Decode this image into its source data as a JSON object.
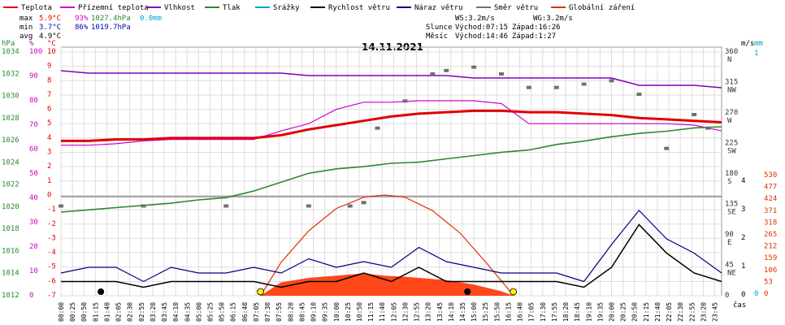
{
  "header": {
    "legend": [
      {
        "label": "Teplota",
        "color": "#e00000"
      },
      {
        "label": "Přízemní teplota",
        "color": "#d000d0"
      },
      {
        "label": "Vlhkost",
        "color": "#8000c0"
      },
      {
        "label": "Tlak",
        "color": "#2a8a2a"
      },
      {
        "label": "Srážky",
        "color": "#00a0d0"
      },
      {
        "label": "Rychlost větru",
        "color": "#000000"
      },
      {
        "label": "Náraz větru",
        "color": "#000080"
      },
      {
        "label": "Směr větru",
        "color": "#707070"
      },
      {
        "label": "Globální záření",
        "color": "#e03000"
      }
    ],
    "stats": {
      "max": {
        "label": "max",
        "temp": "5.9°C",
        "hum": "93%",
        "press": "1027.4hPa",
        "rain": "0.0mm"
      },
      "min": {
        "label": "min",
        "temp": "3.7°C",
        "hum": "86%",
        "press": "1019.7hPa"
      },
      "avg": {
        "label": "avg",
        "temp": "4.9°C"
      }
    },
    "wind": {
      "ws": "WS:3.2m/s",
      "wg": "WG:3.2m/s"
    },
    "sun": {
      "label": "Slunce",
      "rise": "Východ:07:15",
      "set": "Západ:16:26"
    },
    "moon": {
      "label": "Měsíc",
      "rise": "Východ:14:46",
      "set": "Západ:1:27"
    }
  },
  "chart_data": {
    "type": "line",
    "title": "14.11.2021",
    "x_unit": "čas",
    "x_ticks": [
      "00:00",
      "00:25",
      "00:50",
      "01:15",
      "01:40",
      "02:05",
      "02:30",
      "02:55",
      "03:20",
      "03:45",
      "04:10",
      "04:35",
      "05:00",
      "05:25",
      "05:50",
      "06:15",
      "06:40",
      "07:05",
      "07:30",
      "07:55",
      "08:20",
      "08:45",
      "09:10",
      "09:35",
      "10:00",
      "10:25",
      "10:50",
      "11:15",
      "11:40",
      "12:05",
      "12:30",
      "12:55",
      "13:20",
      "13:45",
      "14:10",
      "14:35",
      "15:00",
      "15:25",
      "15:50",
      "16:15",
      "16:40",
      "17:05",
      "17:30",
      "17:55",
      "18:20",
      "18:45",
      "19:10",
      "19:35",
      "20:00",
      "20:25",
      "20:50",
      "21:15",
      "21:40",
      "22:05",
      "22:30",
      "22:55",
      "23:20",
      "23:45"
    ],
    "axes": {
      "pressure": {
        "unit": "hPa",
        "ticks": [
          "1034",
          "1032",
          "1030",
          "1028",
          "1026",
          "1024",
          "1022",
          "1020",
          "1018",
          "1016",
          "1014",
          "1012"
        ],
        "color": "#2a8a2a"
      },
      "humidity": {
        "unit": "%",
        "ticks": [
          "100",
          "90",
          "80",
          "70",
          "60",
          "50",
          "40",
          "30",
          "20",
          "10",
          "0"
        ],
        "color": "#d000d0"
      },
      "temperature": {
        "unit": "°C",
        "ticks": [
          "10",
          "9",
          "8",
          "7",
          "6",
          "5",
          "4",
          "3",
          "2",
          "1",
          "0",
          "-1",
          "-2",
          "-3",
          "-4",
          "-5",
          "-6",
          "-7"
        ],
        "color": "#e00000"
      },
      "direction": {
        "ticks": [
          {
            "v": "360",
            "d": "N"
          },
          {
            "v": "315",
            "d": "NW"
          },
          {
            "v": "270",
            "d": "W"
          },
          {
            "v": "225",
            "d": "SW"
          },
          {
            "v": "180",
            "d": "S"
          },
          {
            "v": "135",
            "d": "SE"
          },
          {
            "v": "90",
            "d": "E"
          },
          {
            "v": "45",
            "d": "NE"
          },
          {
            "v": "0",
            "d": ""
          }
        ]
      },
      "wind": {
        "unit": "m/s",
        "ticks": [
          "4",
          "3",
          "2",
          "1",
          "0"
        ]
      },
      "rain": {
        "unit": "mm",
        "ticks": [
          "1",
          "0"
        ],
        "color": "#00a0d0"
      },
      "radiation": {
        "ticks": [
          "530",
          "477",
          "424",
          "371",
          "318",
          "265",
          "212",
          "159",
          "106",
          "53",
          "0"
        ],
        "color": "#e03000"
      }
    },
    "series": [
      {
        "name": "Teplota",
        "unit": "°C",
        "x": [
          0,
          1,
          2,
          3,
          4,
          5,
          6,
          7,
          8,
          9,
          10,
          11,
          12,
          13,
          14,
          15,
          16,
          17,
          18,
          19,
          20,
          21,
          22,
          23,
          24
        ],
        "values": [
          3.8,
          3.8,
          3.9,
          3.9,
          4.0,
          4.0,
          4.0,
          4.0,
          4.2,
          4.6,
          4.9,
          5.2,
          5.5,
          5.7,
          5.8,
          5.9,
          5.9,
          5.8,
          5.8,
          5.7,
          5.6,
          5.4,
          5.3,
          5.2,
          5.1
        ]
      },
      {
        "name": "Přízemní teplota",
        "unit": "°C",
        "x": [
          0,
          1,
          2,
          3,
          4,
          5,
          6,
          7,
          8,
          9,
          10,
          11,
          12,
          13,
          14,
          15,
          16,
          17,
          18,
          19,
          20,
          21,
          22,
          23,
          24
        ],
        "values": [
          3.5,
          3.5,
          3.6,
          3.8,
          3.9,
          3.9,
          3.9,
          3.9,
          4.5,
          5.0,
          6.0,
          6.5,
          6.5,
          6.6,
          6.6,
          6.6,
          6.4,
          5.0,
          5.0,
          5.0,
          5.0,
          5.0,
          5.0,
          4.9,
          4.5
        ]
      },
      {
        "name": "Vlhkost",
        "unit": "%",
        "x": [
          0,
          1,
          2,
          3,
          4,
          5,
          6,
          7,
          8,
          9,
          10,
          11,
          12,
          13,
          14,
          15,
          16,
          17,
          18,
          19,
          20,
          21,
          22,
          23,
          24
        ],
        "values": [
          93,
          92,
          92,
          92,
          92,
          92,
          92,
          92,
          92,
          91,
          91,
          91,
          91,
          91,
          91,
          90,
          90,
          90,
          90,
          90,
          90,
          87,
          87,
          87,
          86
        ]
      },
      {
        "name": "Tlak",
        "unit": "hPa",
        "x": [
          0,
          1,
          2,
          3,
          4,
          5,
          6,
          7,
          8,
          9,
          10,
          11,
          12,
          13,
          14,
          15,
          16,
          17,
          18,
          19,
          20,
          21,
          22,
          23,
          24
        ],
        "values": [
          1019.7,
          1019.9,
          1020.1,
          1020.3,
          1020.5,
          1020.8,
          1021.0,
          1021.6,
          1022.4,
          1023.2,
          1023.6,
          1023.8,
          1024.1,
          1024.2,
          1024.5,
          1024.8,
          1025.1,
          1025.3,
          1025.8,
          1026.1,
          1026.5,
          1026.8,
          1027.0,
          1027.3,
          1027.4
        ]
      },
      {
        "name": "Rychlost větru",
        "unit": "m/s",
        "x": [
          0,
          1,
          2,
          3,
          4,
          5,
          6,
          7,
          8,
          9,
          10,
          11,
          12,
          13,
          14,
          15,
          16,
          17,
          18,
          19,
          20,
          21,
          22,
          23,
          24
        ],
        "values": [
          0.5,
          0.5,
          0.5,
          0.3,
          0.5,
          0.5,
          0.5,
          0.5,
          0.3,
          0.5,
          0.5,
          0.8,
          0.5,
          1.0,
          0.5,
          0.5,
          0.5,
          0.5,
          0.5,
          0.3,
          1.0,
          2.5,
          1.5,
          0.8,
          0.5
        ]
      },
      {
        "name": "Náraz větru",
        "unit": "m/s",
        "x": [
          0,
          1,
          2,
          3,
          4,
          5,
          6,
          7,
          8,
          9,
          10,
          11,
          12,
          13,
          14,
          15,
          16,
          17,
          18,
          19,
          20,
          21,
          22,
          23,
          24
        ],
        "values": [
          0.8,
          1.0,
          1.0,
          0.5,
          1.0,
          0.8,
          0.8,
          1.0,
          0.8,
          1.3,
          1.0,
          1.2,
          1.0,
          1.7,
          1.2,
          1.0,
          0.8,
          0.8,
          0.8,
          0.5,
          1.8,
          3.0,
          2.0,
          1.5,
          0.8
        ]
      },
      {
        "name": "Směr větru",
        "unit": "°",
        "x": [
          0,
          3,
          6,
          9,
          10.5,
          11,
          11.5,
          12.5,
          13.5,
          14,
          15,
          16,
          17,
          18,
          19,
          20,
          21,
          22,
          23,
          23.5
        ],
        "values": [
          135,
          135,
          135,
          135,
          135,
          140,
          250,
          290,
          330,
          335,
          340,
          330,
          310,
          310,
          315,
          320,
          300,
          220,
          270,
          250
        ]
      },
      {
        "name": "Globální záření",
        "unit": "W/m²",
        "x": [
          7.25,
          8,
          9,
          10,
          11,
          11.75,
          12.5,
          13,
          14,
          15,
          16,
          16.45
        ],
        "values": [
          0,
          60,
          80,
          90,
          100,
          90,
          85,
          80,
          70,
          50,
          20,
          0
        ]
      }
    ],
    "theoretical_radiation": {
      "x": [
        7.25,
        8,
        9,
        10,
        11,
        11.75,
        12.5,
        13.5,
        14.5,
        15.5,
        16.45
      ],
      "values": [
        0,
        150,
        290,
        390,
        440,
        450,
        440,
        380,
        280,
        140,
        0
      ]
    },
    "sun_markers": [
      "07:15",
      "16:26"
    ],
    "moon_markers": [
      "01:27",
      "14:46"
    ]
  }
}
